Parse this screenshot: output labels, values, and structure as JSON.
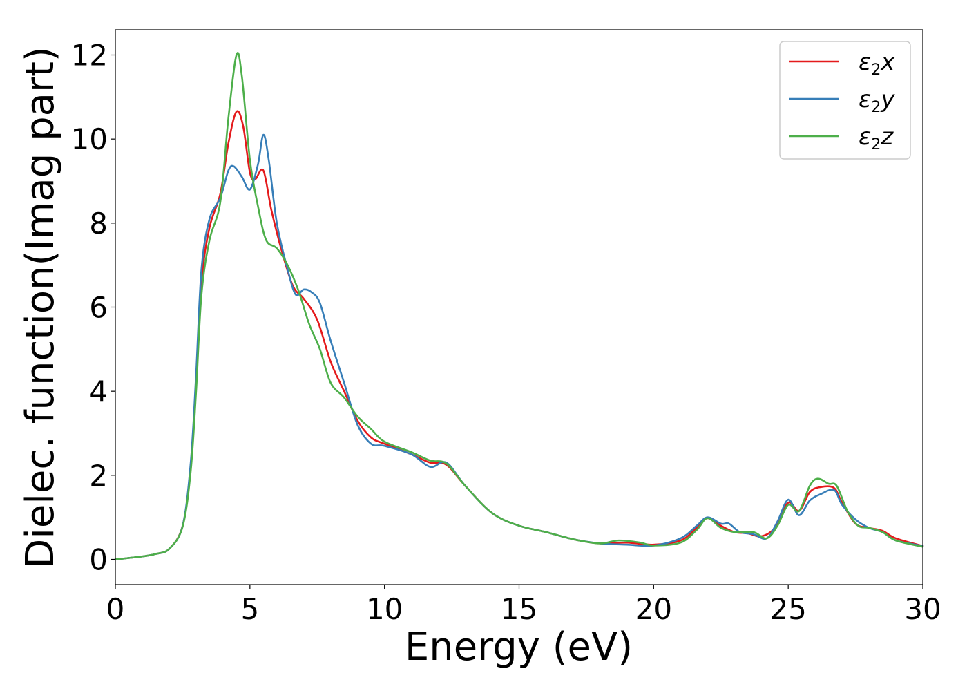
{
  "chart_data": {
    "type": "line",
    "xlabel": "Energy (eV)",
    "ylabel": "Dielec. function(Imag part)",
    "xlim": [
      0,
      30
    ],
    "ylim": [
      -0.6,
      12.6
    ],
    "xticks": [
      0,
      5,
      10,
      15,
      20,
      25,
      30
    ],
    "yticks": [
      0,
      2,
      4,
      6,
      8,
      10,
      12
    ],
    "grid": false,
    "legend_position": "top-right",
    "series": [
      {
        "name": "ε2x",
        "sym": "ε",
        "sub": "2",
        "axis": "x",
        "color": "#e41a1c",
        "points": [
          [
            0,
            0
          ],
          [
            1,
            0.07
          ],
          [
            1.5,
            0.13
          ],
          [
            2,
            0.25
          ],
          [
            2.5,
            0.8
          ],
          [
            2.8,
            2.2
          ],
          [
            3,
            4.2
          ],
          [
            3.2,
            6.6
          ],
          [
            3.5,
            7.9
          ],
          [
            3.9,
            8.7
          ],
          [
            4.2,
            9.9
          ],
          [
            4.5,
            10.65
          ],
          [
            4.75,
            10.3
          ],
          [
            5,
            9.2
          ],
          [
            5.2,
            9.05
          ],
          [
            5.5,
            9.25
          ],
          [
            5.8,
            8.3
          ],
          [
            6.2,
            7.3
          ],
          [
            6.6,
            6.5
          ],
          [
            7.0,
            6.2
          ],
          [
            7.5,
            5.7
          ],
          [
            8.0,
            4.7
          ],
          [
            8.5,
            4.0
          ],
          [
            9.0,
            3.3
          ],
          [
            9.5,
            2.9
          ],
          [
            10,
            2.75
          ],
          [
            11,
            2.5
          ],
          [
            11.7,
            2.3
          ],
          [
            12.3,
            2.25
          ],
          [
            13,
            1.75
          ],
          [
            14,
            1.1
          ],
          [
            15,
            0.8
          ],
          [
            16,
            0.65
          ],
          [
            17,
            0.48
          ],
          [
            18,
            0.38
          ],
          [
            19,
            0.4
          ],
          [
            20,
            0.35
          ],
          [
            21,
            0.45
          ],
          [
            21.6,
            0.75
          ],
          [
            22,
            0.98
          ],
          [
            22.5,
            0.8
          ],
          [
            23,
            0.65
          ],
          [
            23.5,
            0.62
          ],
          [
            24,
            0.55
          ],
          [
            24.5,
            0.75
          ],
          [
            25,
            1.35
          ],
          [
            25.4,
            1.15
          ],
          [
            25.8,
            1.6
          ],
          [
            26.2,
            1.72
          ],
          [
            26.7,
            1.7
          ],
          [
            27,
            1.35
          ],
          [
            27.5,
            0.85
          ],
          [
            28,
            0.75
          ],
          [
            28.5,
            0.68
          ],
          [
            29,
            0.5
          ],
          [
            30,
            0.32
          ]
        ]
      },
      {
        "name": "ε2y",
        "sym": "ε",
        "sub": "2",
        "axis": "y",
        "color": "#377eb8",
        "points": [
          [
            0,
            0
          ],
          [
            1,
            0.07
          ],
          [
            1.5,
            0.13
          ],
          [
            2,
            0.25
          ],
          [
            2.5,
            0.8
          ],
          [
            2.8,
            2.3
          ],
          [
            3,
            4.4
          ],
          [
            3.2,
            6.9
          ],
          [
            3.5,
            8.1
          ],
          [
            3.9,
            8.6
          ],
          [
            4.2,
            9.25
          ],
          [
            4.4,
            9.35
          ],
          [
            4.7,
            9.1
          ],
          [
            5,
            8.8
          ],
          [
            5.3,
            9.4
          ],
          [
            5.5,
            10.1
          ],
          [
            5.7,
            9.5
          ],
          [
            6.0,
            8.0
          ],
          [
            6.4,
            6.9
          ],
          [
            6.7,
            6.3
          ],
          [
            7.0,
            6.42
          ],
          [
            7.3,
            6.35
          ],
          [
            7.6,
            6.1
          ],
          [
            8.0,
            5.2
          ],
          [
            8.5,
            4.2
          ],
          [
            9.0,
            3.2
          ],
          [
            9.5,
            2.75
          ],
          [
            10,
            2.7
          ],
          [
            11,
            2.5
          ],
          [
            11.7,
            2.2
          ],
          [
            12.3,
            2.3
          ],
          [
            13,
            1.75
          ],
          [
            14,
            1.1
          ],
          [
            15,
            0.8
          ],
          [
            16,
            0.65
          ],
          [
            17,
            0.48
          ],
          [
            18,
            0.38
          ],
          [
            19,
            0.35
          ],
          [
            20,
            0.33
          ],
          [
            21,
            0.5
          ],
          [
            21.6,
            0.8
          ],
          [
            22,
            1.0
          ],
          [
            22.5,
            0.85
          ],
          [
            22.8,
            0.85
          ],
          [
            23.2,
            0.65
          ],
          [
            23.7,
            0.6
          ],
          [
            24.2,
            0.5
          ],
          [
            24.6,
            0.9
          ],
          [
            25,
            1.42
          ],
          [
            25.4,
            1.05
          ],
          [
            25.8,
            1.4
          ],
          [
            26.2,
            1.55
          ],
          [
            26.7,
            1.65
          ],
          [
            27,
            1.3
          ],
          [
            27.5,
            0.95
          ],
          [
            28,
            0.75
          ],
          [
            28.5,
            0.65
          ],
          [
            29,
            0.45
          ],
          [
            30,
            0.32
          ]
        ]
      },
      {
        "name": "ε2z",
        "sym": "ε",
        "sub": "2",
        "axis": "z",
        "color": "#4daf4a",
        "points": [
          [
            0,
            0
          ],
          [
            1,
            0.07
          ],
          [
            1.5,
            0.13
          ],
          [
            2,
            0.25
          ],
          [
            2.5,
            0.78
          ],
          [
            2.8,
            2.1
          ],
          [
            3,
            4.0
          ],
          [
            3.2,
            6.3
          ],
          [
            3.5,
            7.6
          ],
          [
            3.9,
            8.5
          ],
          [
            4.2,
            10.5
          ],
          [
            4.5,
            12.0
          ],
          [
            4.7,
            11.5
          ],
          [
            5,
            9.5
          ],
          [
            5.3,
            8.4
          ],
          [
            5.6,
            7.6
          ],
          [
            6.0,
            7.4
          ],
          [
            6.4,
            7.0
          ],
          [
            6.8,
            6.4
          ],
          [
            7.2,
            5.6
          ],
          [
            7.6,
            5.0
          ],
          [
            8.0,
            4.2
          ],
          [
            8.5,
            3.85
          ],
          [
            9.0,
            3.4
          ],
          [
            9.5,
            3.1
          ],
          [
            10,
            2.8
          ],
          [
            11,
            2.55
          ],
          [
            11.7,
            2.35
          ],
          [
            12.3,
            2.28
          ],
          [
            13,
            1.75
          ],
          [
            14,
            1.1
          ],
          [
            15,
            0.8
          ],
          [
            16,
            0.65
          ],
          [
            17,
            0.48
          ],
          [
            18,
            0.38
          ],
          [
            18.7,
            0.45
          ],
          [
            19.5,
            0.4
          ],
          [
            20,
            0.33
          ],
          [
            21,
            0.4
          ],
          [
            21.6,
            0.7
          ],
          [
            22,
            0.98
          ],
          [
            22.5,
            0.75
          ],
          [
            23,
            0.65
          ],
          [
            23.7,
            0.65
          ],
          [
            24.2,
            0.5
          ],
          [
            24.6,
            0.8
          ],
          [
            25,
            1.3
          ],
          [
            25.4,
            1.15
          ],
          [
            25.8,
            1.75
          ],
          [
            26.1,
            1.92
          ],
          [
            26.5,
            1.8
          ],
          [
            26.8,
            1.75
          ],
          [
            27.2,
            1.15
          ],
          [
            27.6,
            0.8
          ],
          [
            28,
            0.75
          ],
          [
            28.5,
            0.65
          ],
          [
            29,
            0.45
          ],
          [
            30,
            0.3
          ]
        ]
      }
    ]
  }
}
